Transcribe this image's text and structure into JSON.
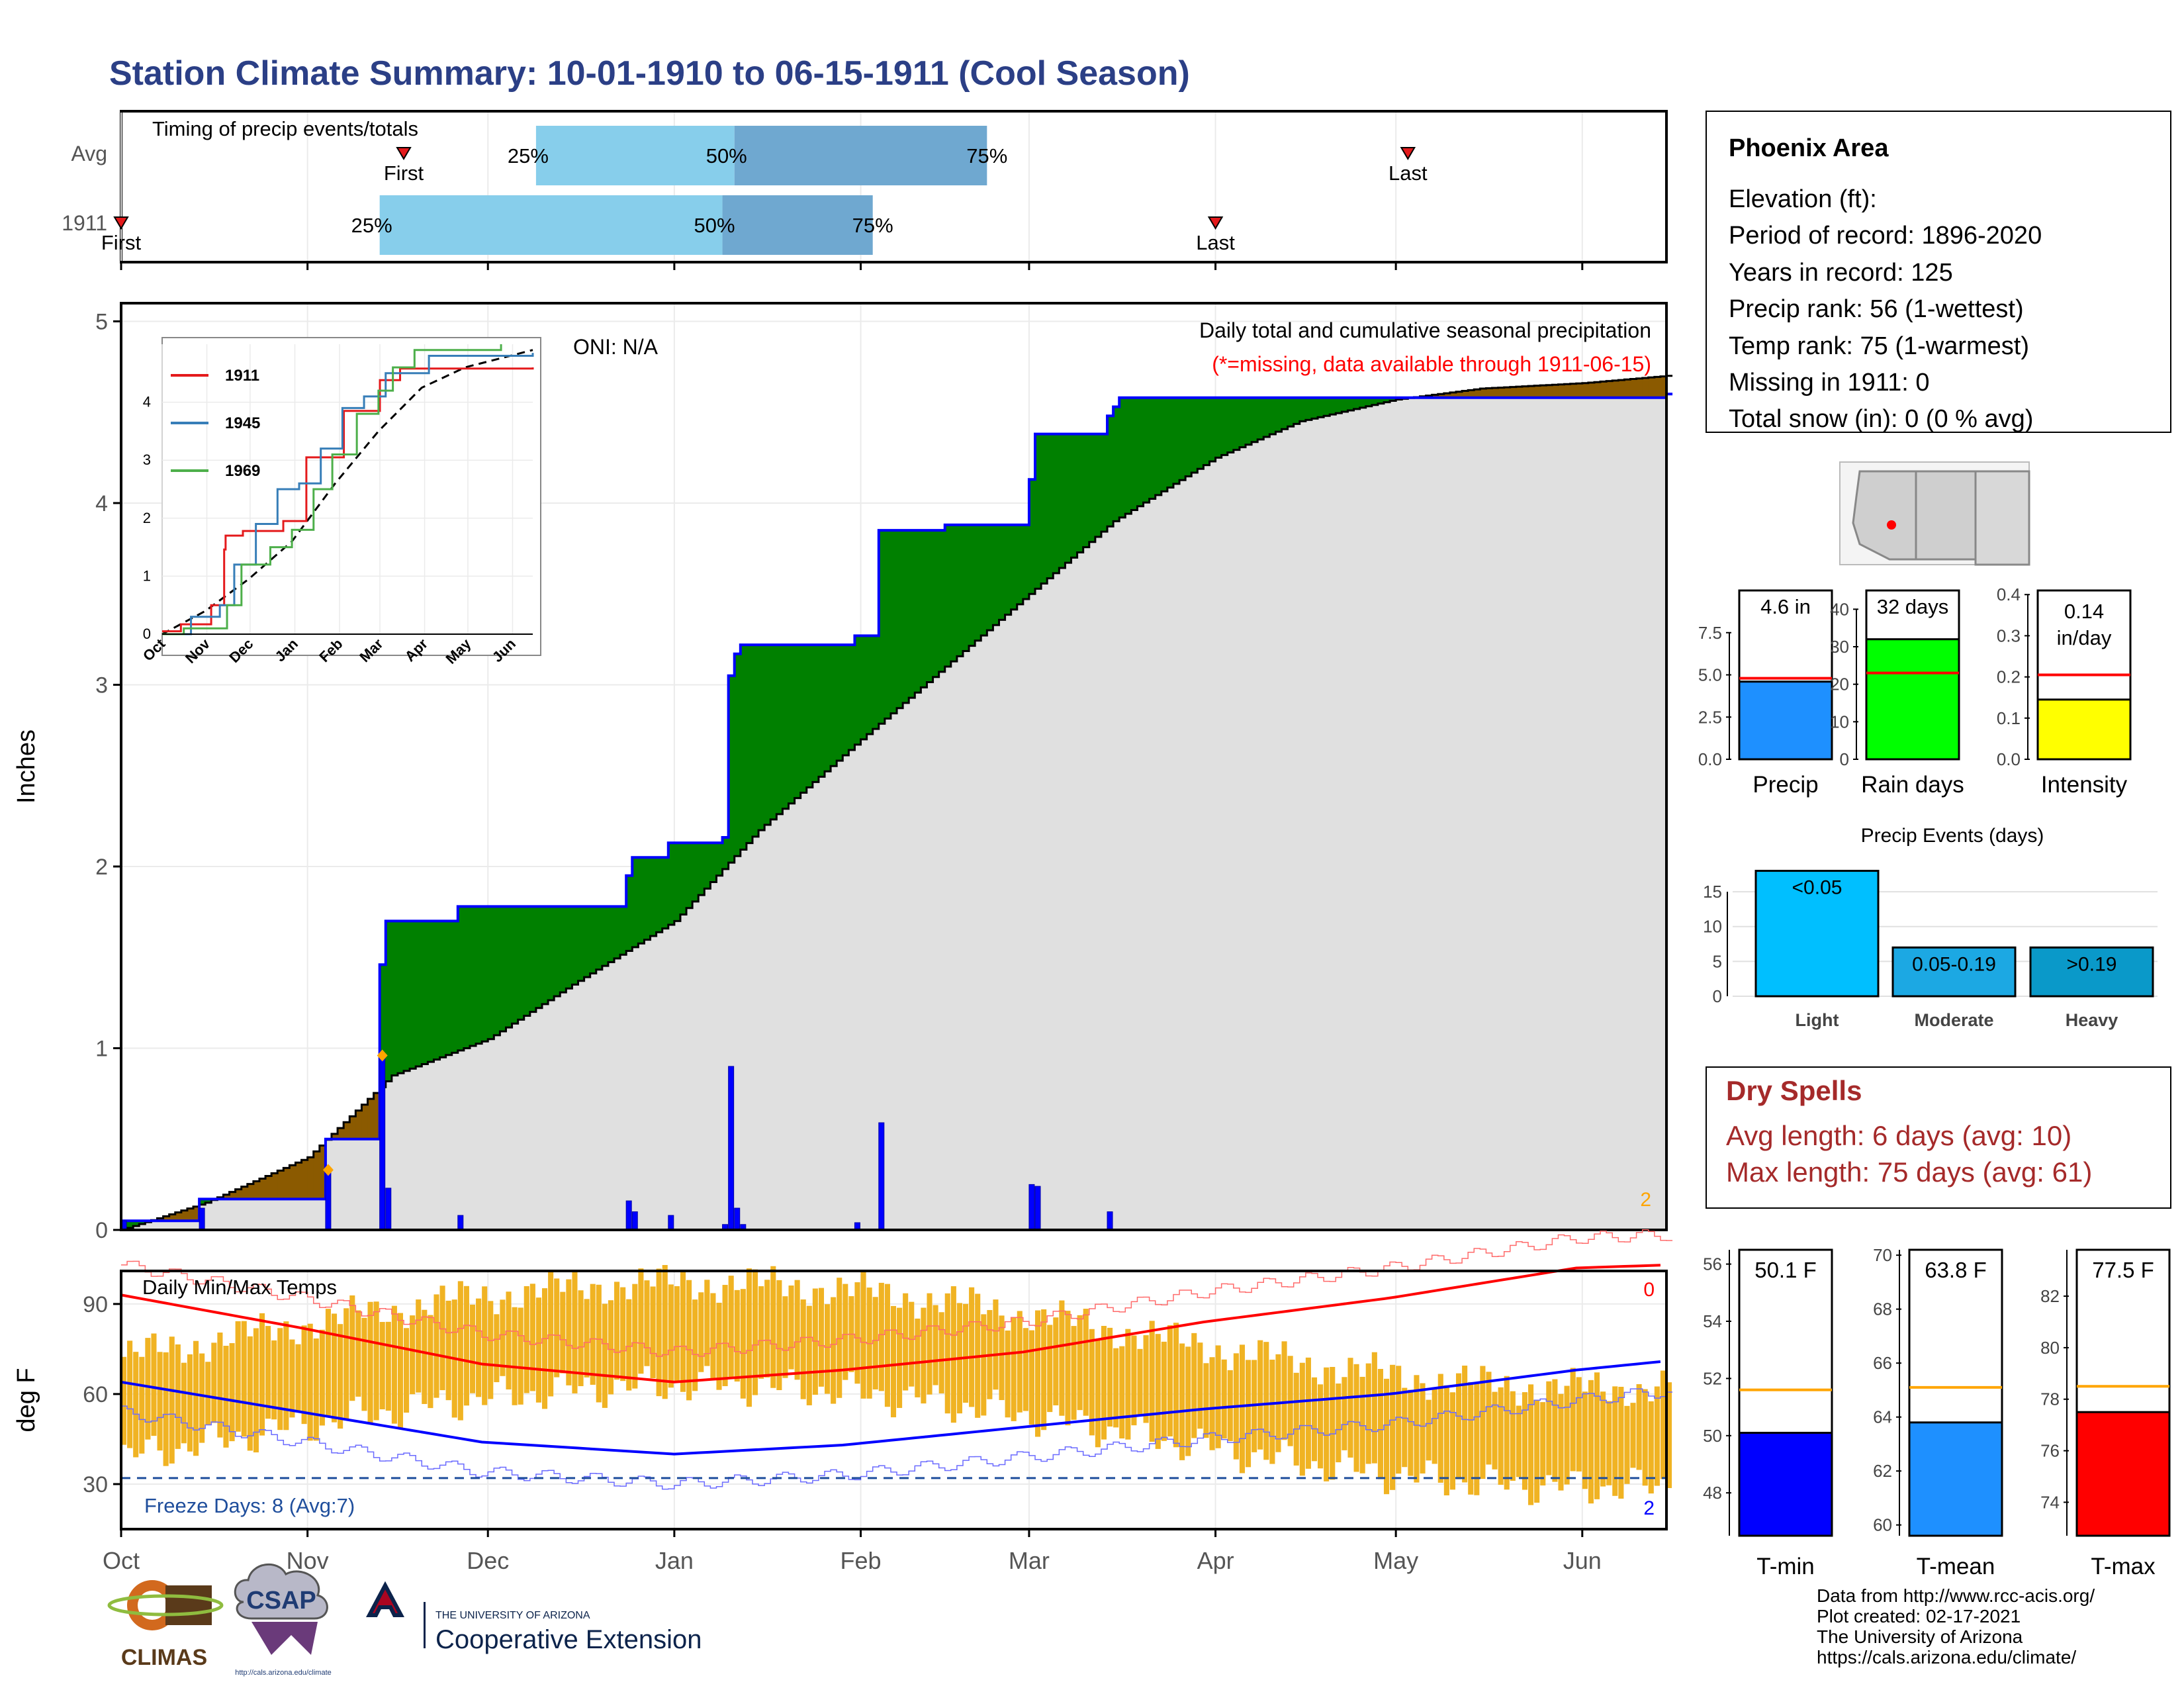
{
  "page_title": "Station Climate Summary: 10-01-1910 to 06-15-1911 (Cool Season)",
  "colors": {
    "title": "#2b3f86",
    "q_light": "#87ceeb",
    "q_dark": "#6fa8d0",
    "cum_fill": "#e0e0e0",
    "deficit": "#8b5a00",
    "surplus": "#008000",
    "daily_bar": "#0000ff",
    "tmean_bar": "#f0b323",
    "tmax": "#ff0000",
    "tmin": "#0000ff",
    "freeze": "#1f4e9c",
    "dry": "#a52a2a"
  },
  "timing_panel": {
    "title": "Timing of precip events/totals",
    "rows": [
      {
        "label": "Avg",
        "first_label": "First",
        "last_label": "Last",
        "first_date": "1910-11-17",
        "last_date": "1911-05-03",
        "q25": "1910-12-09",
        "q50": "1911-01-11",
        "q75": "1911-02-22",
        "q25_label": "25%",
        "q50_label": "50%",
        "q75_label": "75%"
      },
      {
        "label": "1911",
        "first_label": "First",
        "last_label": "Last",
        "first_date": "1910-10-01",
        "last_date": "1911-04-01",
        "q25": "1910-11-13",
        "q50": "1911-01-09",
        "q75": "1911-02-03",
        "q25_label": "25%",
        "q50_label": "50%",
        "q75_label": "75%"
      }
    ]
  },
  "precip_panel": {
    "ylabel": "Inches",
    "yticks": [
      "0",
      "1",
      "2",
      "3",
      "4",
      "5"
    ],
    "header": "Daily total and cumulative seasonal precipitation",
    "missing_note": "(*=missing, data available through 1911-06-15)",
    "oni": "ONI: N/A",
    "missing_count": "2",
    "inset": {
      "xticks": [
        "Oct",
        "Nov",
        "Dec",
        "Jan",
        "Feb",
        "Mar",
        "Apr",
        "May",
        "Jun"
      ],
      "yticks": [
        "0",
        "1",
        "2",
        "3",
        "4"
      ],
      "legend": [
        {
          "label": "1911",
          "color": "#e41a1c"
        },
        {
          "label": "1945",
          "color": "#377eb8"
        },
        {
          "label": "1969",
          "color": "#4daf4a"
        }
      ]
    }
  },
  "temp_panel": {
    "ylabel": "deg F",
    "title": "Daily Min/Max Temps",
    "yticks": [
      "30",
      "60",
      "90"
    ],
    "freeze_label": "Freeze Days: 8 (Avg:7)",
    "missing_top": "0",
    "missing_bottom": "2"
  },
  "month_labels": [
    "Oct",
    "Nov",
    "Dec",
    "Jan",
    "Feb",
    "Mar",
    "Apr",
    "May",
    "Jun"
  ],
  "info_box": {
    "station": "Phoenix Area",
    "elevation": "Elevation (ft):",
    "period": "Period of record: 1896-2020",
    "years": "Years in record: 125",
    "precip_rank": "Precip rank: 56 (1-wettest)",
    "temp_rank": "Temp rank: 75 (1-warmest)",
    "missing": "Missing in 1911: 0",
    "snow": "Total snow (in): 0 (0 % avg)"
  },
  "summary_bars": [
    {
      "name": "precip",
      "label": "Precip",
      "value_text": "4.6 in",
      "value": 4.6,
      "avg": 4.8,
      "ymax": 10,
      "yticks": [
        "0.0",
        "2.5",
        "5.0",
        "7.5"
      ],
      "tick_values": [
        0,
        2.5,
        5,
        7.5
      ],
      "color": "#1e90ff"
    },
    {
      "name": "rain-days",
      "label": "Rain days",
      "value_text": "32 days",
      "value": 32,
      "avg": 23,
      "ymax": 45,
      "yticks": [
        "0",
        "10",
        "20",
        "30",
        "40"
      ],
      "tick_values": [
        0,
        10,
        20,
        30,
        40
      ],
      "color": "#00ff00"
    },
    {
      "name": "intensity",
      "label": "Intensity",
      "value_text": "0.14 in/day",
      "value": 0.145,
      "avg": 0.205,
      "ymax": 0.41,
      "yticks": [
        "0.0",
        "0.1",
        "0.2",
        "0.3",
        "0.4"
      ],
      "tick_values": [
        0,
        0.1,
        0.2,
        0.3,
        0.4
      ],
      "color": "#ffff00"
    }
  ],
  "precip_events": {
    "title": "Precip Events (days)",
    "yticks": [
      "0",
      "5",
      "10",
      "15"
    ],
    "bars": [
      {
        "label": "Light",
        "range": "<0.05",
        "value": 18,
        "color": "#00bfff"
      },
      {
        "label": "Moderate",
        "range": "0.05-0.19",
        "value": 7,
        "color": "#1ca8e3"
      },
      {
        "label": "Heavy",
        "range": ">0.19",
        "value": 7,
        "color": "#0a99c9"
      }
    ]
  },
  "dry_spells": {
    "title": "Dry Spells",
    "avg": "Avg length: 6 days (avg: 10)",
    "max": "Max length: 75 days (avg: 61)"
  },
  "temp_bars": [
    {
      "name": "tmin",
      "label": "T-min",
      "value_text": "50.1 F",
      "value": 50.1,
      "avg": 51.6,
      "ymin": 46.5,
      "ymax": 56.5,
      "yticks": [
        "48",
        "50",
        "52",
        "54",
        "56"
      ],
      "tick_values": [
        48,
        50,
        52,
        54,
        56
      ],
      "color": "#0000ff"
    },
    {
      "name": "tmean",
      "label": "T-mean",
      "value_text": "63.8 F",
      "value": 63.8,
      "avg": 65.1,
      "ymin": 59.6,
      "ymax": 70.2,
      "yticks": [
        "60",
        "62",
        "64",
        "66",
        "68",
        "70"
      ],
      "tick_values": [
        60,
        62,
        64,
        66,
        68,
        70
      ],
      "color": "#1e90ff"
    },
    {
      "name": "tmax",
      "label": "T-max",
      "value_text": "77.5 F",
      "value": 77.5,
      "avg": 78.5,
      "ymin": 72.7,
      "ymax": 83.8,
      "yticks": [
        "74",
        "76",
        "78",
        "80",
        "82"
      ],
      "tick_values": [
        74,
        76,
        78,
        80,
        82
      ],
      "color": "#ff0000"
    }
  ],
  "footer": {
    "logo1": "CLIMAS",
    "logo2": "CSAP",
    "logo2_url": "http://cals.arizona.edu/climate",
    "logo3_small": "THE UNIVERSITY OF ARIZONA",
    "logo3_big": "Cooperative Extension",
    "lines": [
      "Data from http://www.rcc-acis.org/",
      "Plot created: 02-17-2021",
      "The University of Arizona",
      "https://cals.arizona.edu/climate/"
    ]
  },
  "chart_data": [
    {
      "type": "area",
      "title": "Daily total and cumulative seasonal precipitation",
      "ylabel": "Inches",
      "ylim": [
        0,
        5.1
      ],
      "x_range": [
        "1910-10-01",
        "1911-06-15"
      ],
      "daily_precip": [
        {
          "date": "1910-10-01",
          "value": 0.05
        },
        {
          "date": "1910-10-14",
          "value": 0.12
        },
        {
          "date": "1910-11-04",
          "value": 0.33
        },
        {
          "date": "1910-11-13",
          "value": 0.96
        },
        {
          "date": "1910-11-14",
          "value": 0.23
        },
        {
          "date": "1910-11-26",
          "value": 0.08
        },
        {
          "date": "1910-12-24",
          "value": 0.16
        },
        {
          "date": "1910-12-25",
          "value": 0.1
        },
        {
          "date": "1910-12-31",
          "value": 0.08
        },
        {
          "date": "1911-01-09",
          "value": 0.03
        },
        {
          "date": "1911-01-10",
          "value": 0.9
        },
        {
          "date": "1911-01-11",
          "value": 0.12
        },
        {
          "date": "1911-01-12",
          "value": 0.03
        },
        {
          "date": "1911-01-31",
          "value": 0.04
        },
        {
          "date": "1911-02-04",
          "value": 0.59
        },
        {
          "date": "1911-03-01",
          "value": 0.25
        },
        {
          "date": "1911-03-02",
          "value": 0.24
        },
        {
          "date": "1911-03-14",
          "value": 0.1
        }
      ],
      "cumulative_1911": [
        {
          "date": "1910-10-01",
          "value": 0.05
        },
        {
          "date": "1910-10-14",
          "value": 0.17
        },
        {
          "date": "1910-11-04",
          "value": 0.5
        },
        {
          "date": "1910-11-13",
          "value": 1.46
        },
        {
          "date": "1910-11-14",
          "value": 1.7
        },
        {
          "date": "1910-11-26",
          "value": 1.78
        },
        {
          "date": "1910-12-24",
          "value": 1.95
        },
        {
          "date": "1910-12-25",
          "value": 2.05
        },
        {
          "date": "1910-12-31",
          "value": 2.13
        },
        {
          "date": "1911-01-09",
          "value": 2.16
        },
        {
          "date": "1911-01-10",
          "value": 3.05
        },
        {
          "date": "1911-01-11",
          "value": 3.17
        },
        {
          "date": "1911-01-12",
          "value": 3.22
        },
        {
          "date": "1911-01-31",
          "value": 3.27
        },
        {
          "date": "1911-02-04",
          "value": 3.85
        },
        {
          "date": "1911-02-15",
          "value": 3.88
        },
        {
          "date": "1911-03-01",
          "value": 4.13
        },
        {
          "date": "1911-03-02",
          "value": 4.38
        },
        {
          "date": "1911-03-14",
          "value": 4.48
        },
        {
          "date": "1911-03-15",
          "value": 4.53
        },
        {
          "date": "1911-03-16",
          "value": 4.58
        },
        {
          "date": "1911-06-15",
          "value": 4.6
        }
      ],
      "cumulative_avg": [
        {
          "date": "1910-10-01",
          "value": 0.0
        },
        {
          "date": "1910-10-15",
          "value": 0.15
        },
        {
          "date": "1910-11-01",
          "value": 0.4
        },
        {
          "date": "1910-11-15",
          "value": 0.85
        },
        {
          "date": "1910-12-01",
          "value": 1.05
        },
        {
          "date": "1910-12-15",
          "value": 1.35
        },
        {
          "date": "1911-01-01",
          "value": 1.7
        },
        {
          "date": "1911-01-15",
          "value": 2.2
        },
        {
          "date": "1911-02-01",
          "value": 2.7
        },
        {
          "date": "1911-02-15",
          "value": 3.1
        },
        {
          "date": "1911-03-01",
          "value": 3.5
        },
        {
          "date": "1911-03-15",
          "value": 3.9
        },
        {
          "date": "1911-04-01",
          "value": 4.25
        },
        {
          "date": "1911-04-15",
          "value": 4.45
        },
        {
          "date": "1911-05-01",
          "value": 4.57
        },
        {
          "date": "1911-05-15",
          "value": 4.63
        },
        {
          "date": "1911-06-01",
          "value": 4.66
        },
        {
          "date": "1911-06-15",
          "value": 4.7
        }
      ],
      "inset_series": [
        {
          "name": "1911",
          "values": [
            [
              0,
              0.05
            ],
            [
              13,
              0.17
            ],
            [
              34,
              0.5
            ],
            [
              43,
              1.46
            ],
            [
              44,
              1.7
            ],
            [
              56,
              1.78
            ],
            [
              84,
              1.95
            ],
            [
              100,
              3.05
            ],
            [
              126,
              3.85
            ],
            [
              151,
              4.38
            ],
            [
              165,
              4.58
            ],
            [
              257,
              4.6
            ]
          ]
        },
        {
          "name": "1945",
          "values": [
            [
              0,
              0.0
            ],
            [
              20,
              0.3
            ],
            [
              40,
              0.5
            ],
            [
              50,
              1.2
            ],
            [
              65,
              1.9
            ],
            [
              80,
              2.5
            ],
            [
              95,
              2.6
            ],
            [
              110,
              3.2
            ],
            [
              125,
              3.9
            ],
            [
              140,
              4.1
            ],
            [
              155,
              4.5
            ],
            [
              185,
              4.8
            ],
            [
              257,
              4.85
            ]
          ]
        },
        {
          "name": "1969",
          "values": [
            [
              0,
              0.0
            ],
            [
              15,
              0.1
            ],
            [
              45,
              0.5
            ],
            [
              55,
              1.2
            ],
            [
              75,
              1.5
            ],
            [
              90,
              1.8
            ],
            [
              105,
              2.5
            ],
            [
              118,
              3.1
            ],
            [
              135,
              3.8
            ],
            [
              150,
              4.2
            ],
            [
              160,
              4.6
            ],
            [
              175,
              4.9
            ],
            [
              235,
              5.0
            ]
          ]
        }
      ],
      "inset_avg": [
        [
          0,
          0.0
        ],
        [
          30,
          0.4
        ],
        [
          60,
          0.95
        ],
        [
          90,
          1.6
        ],
        [
          120,
          2.6
        ],
        [
          150,
          3.5
        ],
        [
          180,
          4.25
        ],
        [
          210,
          4.6
        ],
        [
          257,
          4.9
        ]
      ]
    },
    {
      "type": "bar",
      "title": "Daily Min/Max Temps",
      "ylabel": "deg F",
      "ylim": [
        15,
        101
      ],
      "freeze_threshold": 32,
      "avg_max": [
        [
          0,
          93
        ],
        [
          30,
          82
        ],
        [
          60,
          70
        ],
        [
          92,
          64
        ],
        [
          120,
          68
        ],
        [
          150,
          74
        ],
        [
          180,
          84
        ],
        [
          211,
          92
        ],
        [
          242,
          102
        ],
        [
          257,
          103
        ]
      ],
      "avg_min": [
        [
          0,
          64
        ],
        [
          30,
          54
        ],
        [
          60,
          44
        ],
        [
          92,
          40
        ],
        [
          120,
          43
        ],
        [
          150,
          49
        ],
        [
          180,
          55
        ],
        [
          211,
          60
        ],
        [
          242,
          68
        ],
        [
          257,
          71
        ]
      ],
      "daily_range_model": {
        "max_hi": 97,
        "max_lo": 62,
        "min_hi": 63,
        "min_lo": 29
      }
    }
  ]
}
